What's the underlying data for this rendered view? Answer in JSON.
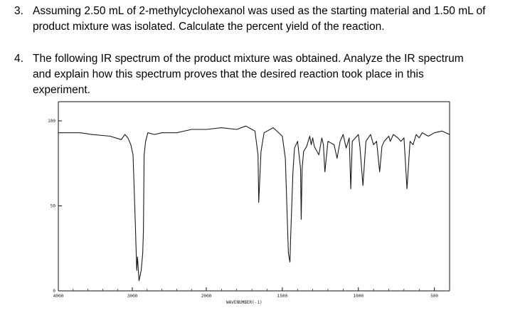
{
  "questions": [
    {
      "number": "3.",
      "lines": [
        "Assuming 2.50 mL of 2-methylcyclohexanol was used as the starting material and 1.50 mL of",
        "product mixture was isolated.  Calculate the percent yield of the reaction."
      ]
    },
    {
      "number": "4.",
      "lines": [
        "The following IR spectrum of the product mixture was obtained. Analyze the IR spectrum",
        "and explain how this spectrum proves that the desired reaction took place in this",
        "experiment."
      ]
    }
  ],
  "spectrum": {
    "y_ticks": [
      "100",
      "50",
      "0"
    ],
    "x_ticks": [
      "4000",
      "3000",
      "2000",
      "1500",
      "1000",
      "500"
    ],
    "x_axis_label": "WAVENUMBER(-1)"
  },
  "chart_data": {
    "type": "line",
    "xlabel": "WAVENUMBER(-1)",
    "ylabel": "",
    "x_reversed": true,
    "xlim": [
      4000,
      400
    ],
    "ylim": [
      0,
      100
    ],
    "series": [
      {
        "x": [
          4000,
          3700,
          3550,
          3300,
          3150,
          3100,
          3060,
          3040,
          3020,
          2990,
          2960,
          2940,
          2930,
          2910,
          2880,
          2860,
          2850,
          2840,
          2820,
          2790,
          2700,
          2600,
          2400,
          2200,
          2000,
          1900,
          1800,
          1740,
          1700,
          1680,
          1660,
          1655,
          1640,
          1620,
          1560,
          1500,
          1480,
          1460,
          1450,
          1445,
          1430,
          1420,
          1400,
          1380,
          1376,
          1370,
          1360,
          1340,
          1320,
          1310,
          1300,
          1290,
          1260,
          1240,
          1230,
          1220,
          1200,
          1160,
          1140,
          1120,
          1100,
          1080,
          1060,
          1050,
          1040,
          1020,
          1000,
          990,
          970,
          950,
          920,
          900,
          880,
          860,
          845,
          830,
          800,
          790,
          770,
          740,
          720,
          700,
          680,
          660,
          640,
          620,
          600,
          580,
          560,
          540,
          520,
          500,
          450,
          400
        ],
        "y": [
          93,
          93,
          92,
          91,
          89,
          92,
          90,
          88,
          86,
          80,
          40,
          12,
          20,
          6,
          12,
          22,
          35,
          80,
          88,
          93,
          92,
          93,
          93,
          95,
          95,
          96,
          95,
          97,
          95,
          94,
          80,
          52,
          82,
          93,
          96,
          91,
          78,
          22,
          17,
          32,
          70,
          84,
          88,
          72,
          42,
          72,
          82,
          85,
          91,
          86,
          90,
          85,
          80,
          90,
          86,
          70,
          88,
          86,
          78,
          88,
          92,
          84,
          90,
          60,
          88,
          90,
          92,
          85,
          62,
          88,
          92,
          86,
          88,
          70,
          85,
          88,
          91,
          88,
          92,
          90,
          88,
          90,
          60,
          88,
          86,
          92,
          90,
          93,
          92,
          91,
          92,
          93,
          94,
          92
        ]
      }
    ]
  }
}
